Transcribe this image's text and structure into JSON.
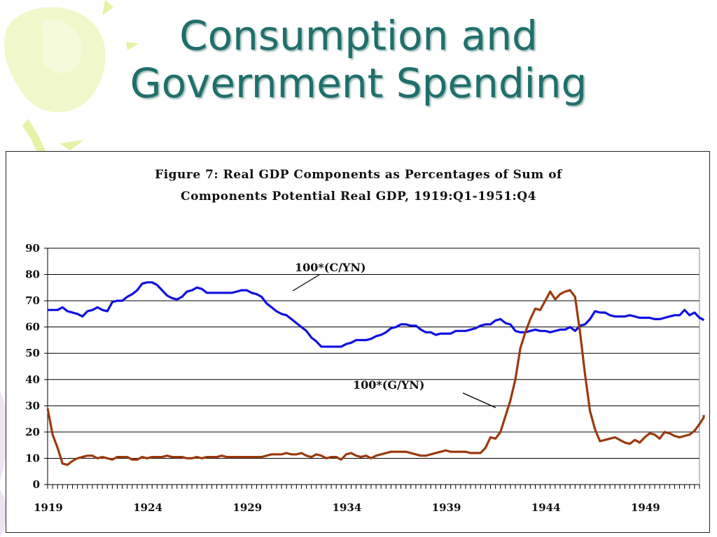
{
  "slide": {
    "title_line1": "Consumption and",
    "title_line2": "Government Spending"
  },
  "colors": {
    "title": "#1f6f6b",
    "series_c": "#1010e0",
    "series_g": "#9a3a0e",
    "decoration": "#e6f2a8"
  },
  "chart_data": {
    "type": "line",
    "title_line1": "Figure 7: Real GDP Components as Percentages of Sum of",
    "title_line2": "Components Potential Real GDP, 1919:Q1-1951:Q4",
    "ylim": [
      0,
      90
    ],
    "yticks": [
      0,
      10,
      20,
      30,
      40,
      50,
      60,
      70,
      80,
      90
    ],
    "xlim": [
      1919.0,
      1951.75
    ],
    "xtick_labels": [
      "1919",
      "1924",
      "1929",
      "1934",
      "1939",
      "1944",
      "1949"
    ],
    "xtick_values": [
      1919,
      1924,
      1929,
      1934,
      1939,
      1944,
      1949
    ],
    "grid": "horizontal",
    "series": [
      {
        "name": "100*(C/YN)",
        "color": "#1010e0",
        "points": [
          [
            1919.0,
            66.5
          ],
          [
            1919.5,
            66.5
          ],
          [
            1919.75,
            67.5
          ],
          [
            1920.0,
            66
          ],
          [
            1920.5,
            65
          ],
          [
            1920.75,
            64
          ],
          [
            1921.0,
            66
          ],
          [
            1921.25,
            66.5
          ],
          [
            1921.5,
            67.5
          ],
          [
            1921.75,
            66.5
          ],
          [
            1922.0,
            66
          ],
          [
            1922.25,
            69.5
          ],
          [
            1922.5,
            70
          ],
          [
            1922.75,
            70
          ],
          [
            1923.0,
            71.5
          ],
          [
            1923.25,
            72.5
          ],
          [
            1923.5,
            74
          ],
          [
            1923.75,
            76.5
          ],
          [
            1924.0,
            77
          ],
          [
            1924.25,
            77
          ],
          [
            1924.5,
            76
          ],
          [
            1924.75,
            74
          ],
          [
            1925.0,
            72
          ],
          [
            1925.25,
            71
          ],
          [
            1925.5,
            70.5
          ],
          [
            1925.75,
            71.5
          ],
          [
            1926.0,
            73.5
          ],
          [
            1926.25,
            74
          ],
          [
            1926.5,
            75
          ],
          [
            1926.75,
            74.5
          ],
          [
            1927.0,
            73
          ],
          [
            1927.25,
            73
          ],
          [
            1927.5,
            73
          ],
          [
            1927.75,
            73
          ],
          [
            1928.0,
            73
          ],
          [
            1928.25,
            73
          ],
          [
            1928.5,
            73.5
          ],
          [
            1928.75,
            74
          ],
          [
            1929.0,
            74
          ],
          [
            1929.25,
            73
          ],
          [
            1929.5,
            72.5
          ],
          [
            1929.75,
            71.5
          ],
          [
            1930.0,
            69
          ],
          [
            1930.25,
            67.5
          ],
          [
            1930.5,
            66
          ],
          [
            1930.75,
            65
          ],
          [
            1931.0,
            64.5
          ],
          [
            1931.25,
            63
          ],
          [
            1931.5,
            61.5
          ],
          [
            1931.75,
            60
          ],
          [
            1932.0,
            58.5
          ],
          [
            1932.25,
            56
          ],
          [
            1932.5,
            54.5
          ],
          [
            1932.75,
            52.5
          ],
          [
            1933.0,
            52.5
          ],
          [
            1933.25,
            52.5
          ],
          [
            1933.5,
            52.5
          ],
          [
            1933.75,
            52.5
          ],
          [
            1934.0,
            53.5
          ],
          [
            1934.25,
            54
          ],
          [
            1934.5,
            55
          ],
          [
            1934.75,
            55
          ],
          [
            1935.0,
            55
          ],
          [
            1935.25,
            55.5
          ],
          [
            1935.5,
            56.5
          ],
          [
            1935.75,
            57
          ],
          [
            1936.0,
            58
          ],
          [
            1936.25,
            59.5
          ],
          [
            1936.5,
            60
          ],
          [
            1936.75,
            61
          ],
          [
            1937.0,
            61
          ],
          [
            1937.25,
            60.5
          ],
          [
            1937.5,
            60.5
          ],
          [
            1937.75,
            59
          ],
          [
            1938.0,
            58
          ],
          [
            1938.25,
            58
          ],
          [
            1938.5,
            57
          ],
          [
            1938.75,
            57.5
          ],
          [
            1939.0,
            57.5
          ],
          [
            1939.25,
            57.5
          ],
          [
            1939.5,
            58.5
          ],
          [
            1939.75,
            58.5
          ],
          [
            1940.0,
            58.5
          ],
          [
            1940.25,
            59
          ],
          [
            1940.5,
            59.5
          ],
          [
            1940.75,
            60.5
          ],
          [
            1941.0,
            61
          ],
          [
            1941.25,
            61
          ],
          [
            1941.5,
            62.5
          ],
          [
            1941.75,
            63
          ],
          [
            1942.0,
            61.5
          ],
          [
            1942.25,
            61
          ],
          [
            1942.5,
            58.5
          ],
          [
            1942.75,
            58
          ],
          [
            1943.0,
            58
          ],
          [
            1943.25,
            58.5
          ],
          [
            1943.5,
            59
          ],
          [
            1943.75,
            58.5
          ],
          [
            1944.0,
            58.5
          ],
          [
            1944.25,
            58
          ],
          [
            1944.5,
            58.5
          ],
          [
            1944.75,
            59
          ],
          [
            1945.0,
            59
          ],
          [
            1945.25,
            60
          ],
          [
            1945.5,
            58.5
          ],
          [
            1945.75,
            60.5
          ],
          [
            1946.0,
            61
          ],
          [
            1946.25,
            63
          ],
          [
            1946.5,
            66
          ],
          [
            1946.75,
            65.5
          ],
          [
            1947.0,
            65.5
          ],
          [
            1947.25,
            64.5
          ],
          [
            1947.5,
            64
          ],
          [
            1947.75,
            64
          ],
          [
            1948.0,
            64
          ],
          [
            1948.25,
            64.5
          ],
          [
            1948.5,
            64
          ],
          [
            1948.75,
            63.5
          ],
          [
            1949.0,
            63.5
          ],
          [
            1949.25,
            63.5
          ],
          [
            1949.5,
            63
          ],
          [
            1949.75,
            63
          ],
          [
            1950.0,
            63.5
          ],
          [
            1950.25,
            64
          ],
          [
            1950.5,
            64.5
          ],
          [
            1950.75,
            64.5
          ],
          [
            1951.0,
            66.5
          ],
          [
            1951.25,
            64.5
          ],
          [
            1951.5,
            65.5
          ],
          [
            1951.75,
            63.5
          ],
          [
            1951.9,
            63
          ],
          [
            1952.0,
            62.5
          ]
        ]
      },
      {
        "name": "100*(G/YN)",
        "color": "#9a3a0e",
        "points": [
          [
            1919.0,
            29
          ],
          [
            1919.25,
            19
          ],
          [
            1919.5,
            14
          ],
          [
            1919.75,
            8
          ],
          [
            1920.0,
            7.5
          ],
          [
            1920.25,
            9
          ],
          [
            1920.5,
            10
          ],
          [
            1920.75,
            10.5
          ],
          [
            1921.0,
            11
          ],
          [
            1921.25,
            11
          ],
          [
            1921.5,
            10
          ],
          [
            1921.75,
            10.5
          ],
          [
            1922.0,
            10
          ],
          [
            1922.25,
            9.5
          ],
          [
            1922.5,
            10.5
          ],
          [
            1922.75,
            10.5
          ],
          [
            1923.0,
            10.5
          ],
          [
            1923.25,
            9.5
          ],
          [
            1923.5,
            9.5
          ],
          [
            1923.75,
            10.5
          ],
          [
            1924.0,
            10
          ],
          [
            1924.25,
            10.5
          ],
          [
            1924.5,
            10.5
          ],
          [
            1924.75,
            10.5
          ],
          [
            1925.0,
            11
          ],
          [
            1925.25,
            10.5
          ],
          [
            1925.5,
            10.5
          ],
          [
            1925.75,
            10.5
          ],
          [
            1926.0,
            10
          ],
          [
            1926.25,
            10
          ],
          [
            1926.5,
            10.5
          ],
          [
            1926.75,
            10
          ],
          [
            1927.0,
            10.5
          ],
          [
            1927.25,
            10.5
          ],
          [
            1927.5,
            10.5
          ],
          [
            1927.75,
            11
          ],
          [
            1928.0,
            10.5
          ],
          [
            1928.25,
            10.5
          ],
          [
            1928.5,
            10.5
          ],
          [
            1928.75,
            10.5
          ],
          [
            1929.0,
            10.5
          ],
          [
            1929.25,
            10.5
          ],
          [
            1929.5,
            10.5
          ],
          [
            1929.75,
            10.5
          ],
          [
            1930.0,
            11
          ],
          [
            1930.25,
            11.5
          ],
          [
            1930.5,
            11.5
          ],
          [
            1930.75,
            11.5
          ],
          [
            1931.0,
            12
          ],
          [
            1931.25,
            11.5
          ],
          [
            1931.5,
            11.5
          ],
          [
            1931.75,
            12
          ],
          [
            1932.0,
            11
          ],
          [
            1932.25,
            10.5
          ],
          [
            1932.5,
            11.5
          ],
          [
            1932.75,
            11
          ],
          [
            1933.0,
            10
          ],
          [
            1933.25,
            10.5
          ],
          [
            1933.5,
            10.5
          ],
          [
            1933.75,
            9.5
          ],
          [
            1934.0,
            11.5
          ],
          [
            1934.25,
            12
          ],
          [
            1934.5,
            11
          ],
          [
            1934.75,
            10.5
          ],
          [
            1935.0,
            11
          ],
          [
            1935.25,
            10
          ],
          [
            1935.5,
            11
          ],
          [
            1935.75,
            11.5
          ],
          [
            1936.0,
            12
          ],
          [
            1936.25,
            12.5
          ],
          [
            1936.5,
            12.5
          ],
          [
            1936.75,
            12.5
          ],
          [
            1937.0,
            12.5
          ],
          [
            1937.25,
            12
          ],
          [
            1937.5,
            11.5
          ],
          [
            1937.75,
            11
          ],
          [
            1938.0,
            11
          ],
          [
            1938.25,
            11.5
          ],
          [
            1938.5,
            12
          ],
          [
            1938.75,
            12.5
          ],
          [
            1939.0,
            13
          ],
          [
            1939.25,
            12.5
          ],
          [
            1939.5,
            12.5
          ],
          [
            1939.75,
            12.5
          ],
          [
            1940.0,
            12.5
          ],
          [
            1940.25,
            12
          ],
          [
            1940.5,
            12
          ],
          [
            1940.75,
            12
          ],
          [
            1941.0,
            14
          ],
          [
            1941.25,
            18
          ],
          [
            1941.5,
            17.5
          ],
          [
            1941.75,
            20
          ],
          [
            1942.0,
            26
          ],
          [
            1942.25,
            32
          ],
          [
            1942.5,
            40
          ],
          [
            1942.75,
            52
          ],
          [
            1943.0,
            58
          ],
          [
            1943.25,
            63
          ],
          [
            1943.5,
            67
          ],
          [
            1943.75,
            66.5
          ],
          [
            1944.0,
            70
          ],
          [
            1944.25,
            73.5
          ],
          [
            1944.5,
            70.5
          ],
          [
            1944.75,
            72.5
          ],
          [
            1945.0,
            73.5
          ],
          [
            1945.25,
            74
          ],
          [
            1945.5,
            71.5
          ],
          [
            1945.75,
            58
          ],
          [
            1946.0,
            42
          ],
          [
            1946.25,
            28
          ],
          [
            1946.5,
            21
          ],
          [
            1946.75,
            16.5
          ],
          [
            1947.0,
            17
          ],
          [
            1947.25,
            17.5
          ],
          [
            1947.5,
            18
          ],
          [
            1947.75,
            17
          ],
          [
            1948.0,
            16
          ],
          [
            1948.25,
            15.5
          ],
          [
            1948.5,
            17
          ],
          [
            1948.75,
            16
          ],
          [
            1949.0,
            18
          ],
          [
            1949.25,
            19.5
          ],
          [
            1949.5,
            19
          ],
          [
            1949.75,
            17.5
          ],
          [
            1950.0,
            20
          ],
          [
            1950.25,
            19.5
          ],
          [
            1950.5,
            18.5
          ],
          [
            1950.75,
            18
          ],
          [
            1951.0,
            18.5
          ],
          [
            1951.25,
            19
          ],
          [
            1951.5,
            20.5
          ],
          [
            1951.75,
            23
          ],
          [
            1952.0,
            25.5
          ],
          [
            1952.3,
            26.5
          ]
        ]
      }
    ],
    "annotations": [
      {
        "text": "100*(C/YN)",
        "series": 0
      },
      {
        "text": "100*(G/YN)",
        "series": 1
      }
    ]
  }
}
